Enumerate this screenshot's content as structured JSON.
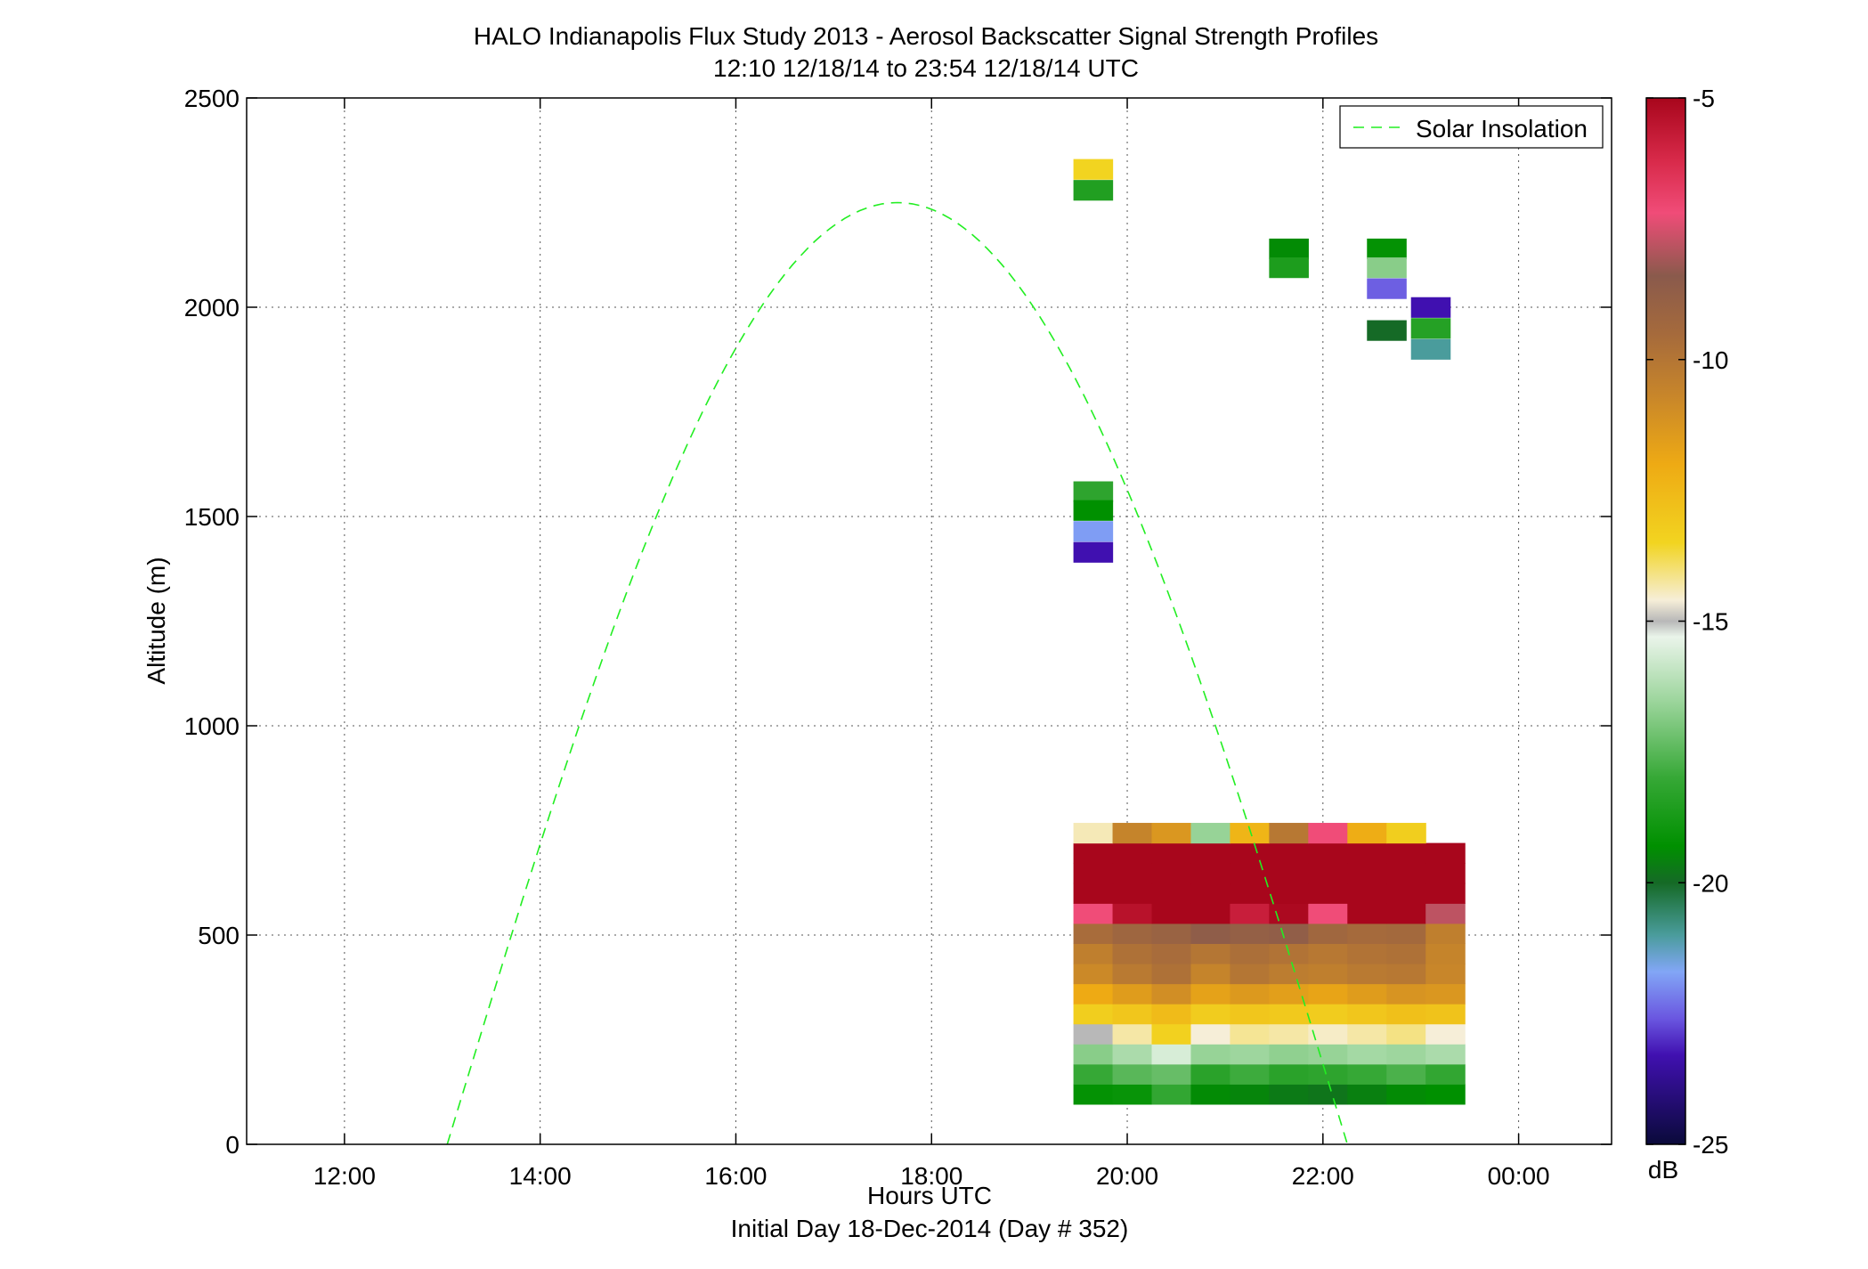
{
  "chart_data": {
    "type": "heatmap",
    "title": "HALO Indianapolis Flux Study 2013 - Aerosol Backscatter Signal Strength Profiles",
    "subtitle": "12:10 12/18/14 to 23:54 12/18/14  UTC",
    "xlabel": "Hours UTC",
    "xlabel2": "Initial Day 18-Dec-2014 (Day # 352)",
    "ylabel": "Altitude (m)",
    "x_range_hours": [
      11.0,
      24.95
    ],
    "x_ticks": [
      {
        "hour": 12,
        "label": "12:00"
      },
      {
        "hour": 14,
        "label": "14:00"
      },
      {
        "hour": 16,
        "label": "16:00"
      },
      {
        "hour": 18,
        "label": "18:00"
      },
      {
        "hour": 20,
        "label": "20:00"
      },
      {
        "hour": 22,
        "label": "22:00"
      },
      {
        "hour": 24,
        "label": "00:00"
      }
    ],
    "ylim": [
      0,
      2500
    ],
    "y_ticks": [
      {
        "value": 0,
        "label": "0"
      },
      {
        "value": 500,
        "label": "500"
      },
      {
        "value": 1000,
        "label": "1000"
      },
      {
        "value": 1500,
        "label": "1500"
      },
      {
        "value": 2000,
        "label": "2000"
      },
      {
        "value": 2500,
        "label": "2500"
      }
    ],
    "grid": true,
    "legend": {
      "placement": "top-right",
      "entries": [
        {
          "label": "Solar Insolation",
          "color": "#22ee22",
          "style": "dashed"
        }
      ]
    },
    "colorbar": {
      "unit": "dB",
      "min": -25,
      "max": -5,
      "ticks": [
        {
          "value": -5,
          "label": "-5"
        },
        {
          "value": -10,
          "label": "-10"
        },
        {
          "value": -15,
          "label": "-15"
        },
        {
          "value": -20,
          "label": "-20"
        },
        {
          "value": -25,
          "label": "-25"
        }
      ],
      "stops": [
        {
          "value": -5,
          "color": "#a8061c"
        },
        {
          "value": -6.2,
          "color": "#d82a4a"
        },
        {
          "value": -7.2,
          "color": "#f04c78"
        },
        {
          "value": -8.4,
          "color": "#8a5a4c"
        },
        {
          "value": -9.5,
          "color": "#a56a3c"
        },
        {
          "value": -10.7,
          "color": "#c8862a"
        },
        {
          "value": -12,
          "color": "#eeaa14"
        },
        {
          "value": -13.5,
          "color": "#f2d420"
        },
        {
          "value": -14.6,
          "color": "#f6eed8"
        },
        {
          "value": -15,
          "color": "#b8b8b8"
        },
        {
          "value": -15.3,
          "color": "#eaf4ea"
        },
        {
          "value": -16.5,
          "color": "#9ed69e"
        },
        {
          "value": -18,
          "color": "#36a836"
        },
        {
          "value": -19.3,
          "color": "#009000"
        },
        {
          "value": -20,
          "color": "#156a26"
        },
        {
          "value": -21,
          "color": "#4a9c9c"
        },
        {
          "value": -21.7,
          "color": "#82a6f6"
        },
        {
          "value": -22.6,
          "color": "#6a56e0"
        },
        {
          "value": -23.3,
          "color": "#4010b0"
        },
        {
          "value": -25,
          "color": "#0a0a3a"
        }
      ]
    },
    "solar_insolation": {
      "start_hour": 13.05,
      "peak_hour": 17.65,
      "end_hour": 22.25,
      "peak_altitude": 2250
    },
    "cells": {
      "cell_width_hours": 0.4,
      "cell_height_m": 48,
      "low_profile_hours": [
        19.65,
        20.05,
        20.45,
        20.85,
        21.25,
        21.65,
        22.05,
        22.45,
        22.85,
        23.25
      ],
      "low_profile_altitudes": [
        120,
        168,
        216,
        264,
        312,
        360,
        408,
        456,
        504,
        552,
        600,
        648,
        696,
        744
      ],
      "low_profile_db": [
        [
          -19.2,
          -19.1,
          -18.1,
          -19.4,
          -19.5,
          -19.7,
          -19.8,
          -19.6,
          -19.4,
          -19.3
        ],
        [
          -18.0,
          -17.5,
          -17.3,
          -18.3,
          -17.9,
          -18.3,
          -18.2,
          -18.0,
          -17.7,
          -18.1
        ],
        [
          -16.8,
          -16.3,
          -15.6,
          -16.6,
          -16.5,
          -16.7,
          -16.6,
          -16.4,
          -16.5,
          -16.3
        ],
        [
          -15.0,
          -14.3,
          -13.4,
          -14.6,
          -14.2,
          -14.3,
          -14.5,
          -14.3,
          -14.1,
          -14.6
        ],
        [
          -13.3,
          -13.0,
          -12.6,
          -13.2,
          -13.0,
          -13.1,
          -13.2,
          -13.0,
          -12.8,
          -12.9
        ],
        [
          -12.0,
          -11.5,
          -11.0,
          -11.7,
          -11.4,
          -11.6,
          -11.8,
          -11.5,
          -11.2,
          -11.3
        ],
        [
          -10.8,
          -10.2,
          -9.8,
          -10.6,
          -10.0,
          -10.3,
          -10.4,
          -10.2,
          -10.1,
          -10.7
        ],
        [
          -10.4,
          -9.8,
          -9.6,
          -10.0,
          -9.7,
          -9.9,
          -10.1,
          -9.9,
          -9.8,
          -10.6
        ],
        [
          -9.6,
          -9.2,
          -9.0,
          -8.6,
          -8.8,
          -8.7,
          -9.3,
          -9.5,
          -9.4,
          -10.4
        ],
        [
          -7.2,
          -5.4,
          -5.0,
          -5.0,
          -5.8,
          -5.1,
          -7.2,
          -5.0,
          -5.0,
          -7.8
        ],
        [
          -5.0,
          -5.0,
          -5.0,
          -5.0,
          -5.0,
          -5.0,
          -5.0,
          -5.0,
          -5.0,
          -5.0
        ],
        [
          -5.0,
          -5.0,
          -5.0,
          -5.0,
          -5.0,
          -5.0,
          -5.0,
          -5.0,
          -5.0,
          -5.0
        ],
        [
          -5.0,
          -5.0,
          -5.0,
          -5.0,
          -5.0,
          -5.0,
          -5.0,
          -5.0,
          -5.0,
          -5.0
        ],
        [
          -14.4,
          -10.6,
          -11.3,
          -16.6,
          -12.4,
          -10.1,
          -7.2,
          -12.1,
          -13.3,
          null
        ]
      ],
      "isolated_cells": [
        {
          "hour": 19.65,
          "altitude": 2330,
          "db": -13.5
        },
        {
          "hour": 19.65,
          "altitude": 2280,
          "db": -18.5
        },
        {
          "hour": 19.65,
          "altitude": 1560,
          "db": -18.2
        },
        {
          "hour": 19.65,
          "altitude": 1515,
          "db": -19.3
        },
        {
          "hour": 19.65,
          "altitude": 1465,
          "db": -21.8
        },
        {
          "hour": 19.65,
          "altitude": 1415,
          "db": -23.3
        },
        {
          "hour": 21.65,
          "altitude": 2140,
          "db": -19.4
        },
        {
          "hour": 21.65,
          "altitude": 2095,
          "db": -18.6
        },
        {
          "hour": 22.65,
          "altitude": 2140,
          "db": -19.2
        },
        {
          "hour": 22.65,
          "altitude": 2095,
          "db": -16.8
        },
        {
          "hour": 22.65,
          "altitude": 2045,
          "db": -22.5
        },
        {
          "hour": 22.65,
          "altitude": 1945,
          "db": -20.0
        },
        {
          "hour": 23.1,
          "altitude": 2000,
          "db": -23.3
        },
        {
          "hour": 23.1,
          "altitude": 1950,
          "db": -18.4
        },
        {
          "hour": 23.1,
          "altitude": 1900,
          "db": -21.0
        }
      ]
    }
  }
}
